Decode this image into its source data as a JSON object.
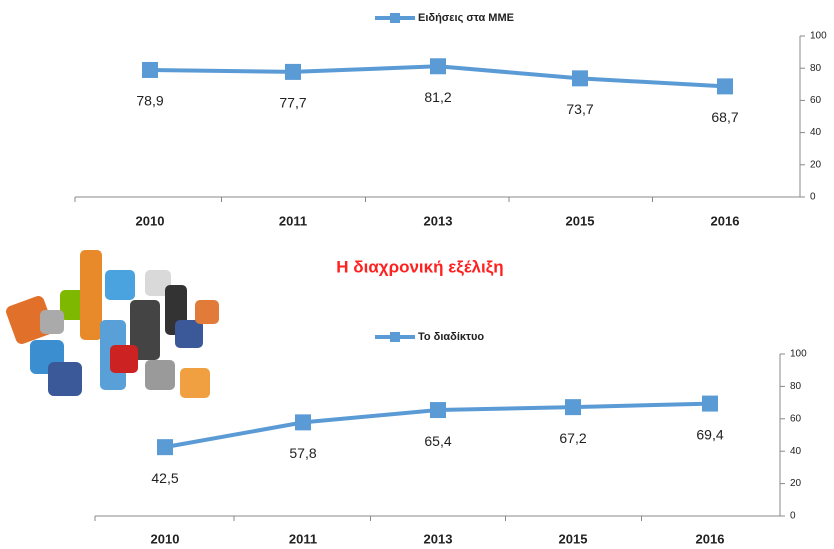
{
  "heading": "Η διαχρονική εξέλιξη",
  "chart_data": [
    {
      "type": "line",
      "categories": [
        "2010",
        "2011",
        "2013",
        "2015",
        "2016"
      ],
      "series": [
        {
          "name": "Ειδήσεις στα ΜΜΕ",
          "color": "#5b9bd5",
          "values": [
            78.9,
            77.7,
            81.2,
            73.7,
            68.7
          ],
          "value_labels": [
            "78,9",
            "77,7",
            "81,2",
            "73,7",
            "68,7"
          ]
        }
      ],
      "ylim": [
        0,
        100
      ],
      "yticks": [
        0,
        20,
        40,
        60,
        80,
        100
      ],
      "grid": false,
      "legend": "top"
    },
    {
      "type": "line",
      "categories": [
        "2010",
        "2011",
        "2013",
        "2015",
        "2016"
      ],
      "series": [
        {
          "name": "Το διαδίκτυο",
          "color": "#5b9bd5",
          "values": [
            42.5,
            57.8,
            65.4,
            67.2,
            69.4
          ],
          "value_labels": [
            "42,5",
            "57,8",
            "65,4",
            "67,2",
            "69,4"
          ]
        }
      ],
      "ylim": [
        0,
        100
      ],
      "yticks": [
        0,
        20,
        40,
        60,
        80,
        100
      ],
      "grid": false,
      "legend": "top"
    }
  ]
}
